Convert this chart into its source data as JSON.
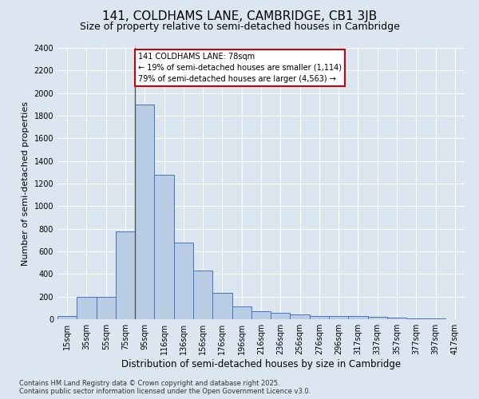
{
  "title_line1": "141, COLDHAMS LANE, CAMBRIDGE, CB1 3JB",
  "title_line2": "Size of property relative to semi-detached houses in Cambridge",
  "xlabel": "Distribution of semi-detached houses by size in Cambridge",
  "ylabel": "Number of semi-detached properties",
  "categories": [
    "15sqm",
    "35sqm",
    "55sqm",
    "75sqm",
    "95sqm",
    "116sqm",
    "136sqm",
    "156sqm",
    "176sqm",
    "196sqm",
    "216sqm",
    "236sqm",
    "256sqm",
    "276sqm",
    "296sqm",
    "317sqm",
    "337sqm",
    "357sqm",
    "377sqm",
    "397sqm",
    "417sqm"
  ],
  "values": [
    25,
    200,
    200,
    775,
    1900,
    1275,
    680,
    430,
    230,
    110,
    70,
    55,
    40,
    30,
    25,
    25,
    20,
    15,
    10,
    5,
    3
  ],
  "bar_color": "#b8cce4",
  "bar_edge_color": "#4472c4",
  "annotation_title": "141 COLDHAMS LANE: 78sqm",
  "annotation_line1": "← 19% of semi-detached houses are smaller (1,114)",
  "annotation_line2": "79% of semi-detached houses are larger (4,563) →",
  "annotation_box_facecolor": "#ffffff",
  "annotation_box_edgecolor": "#cc0000",
  "vline_x_index": 4,
  "ylim": [
    0,
    2400
  ],
  "yticks": [
    0,
    200,
    400,
    600,
    800,
    1000,
    1200,
    1400,
    1600,
    1800,
    2000,
    2200,
    2400
  ],
  "bg_color": "#dce6f1",
  "grid_color": "#ffffff",
  "footer_line1": "Contains HM Land Registry data © Crown copyright and database right 2025.",
  "footer_line2": "Contains public sector information licensed under the Open Government Licence v3.0.",
  "title1_fontsize": 11,
  "title2_fontsize": 9,
  "xlabel_fontsize": 8.5,
  "ylabel_fontsize": 8,
  "tick_fontsize": 7,
  "annot_fontsize": 7,
  "footer_fontsize": 6
}
